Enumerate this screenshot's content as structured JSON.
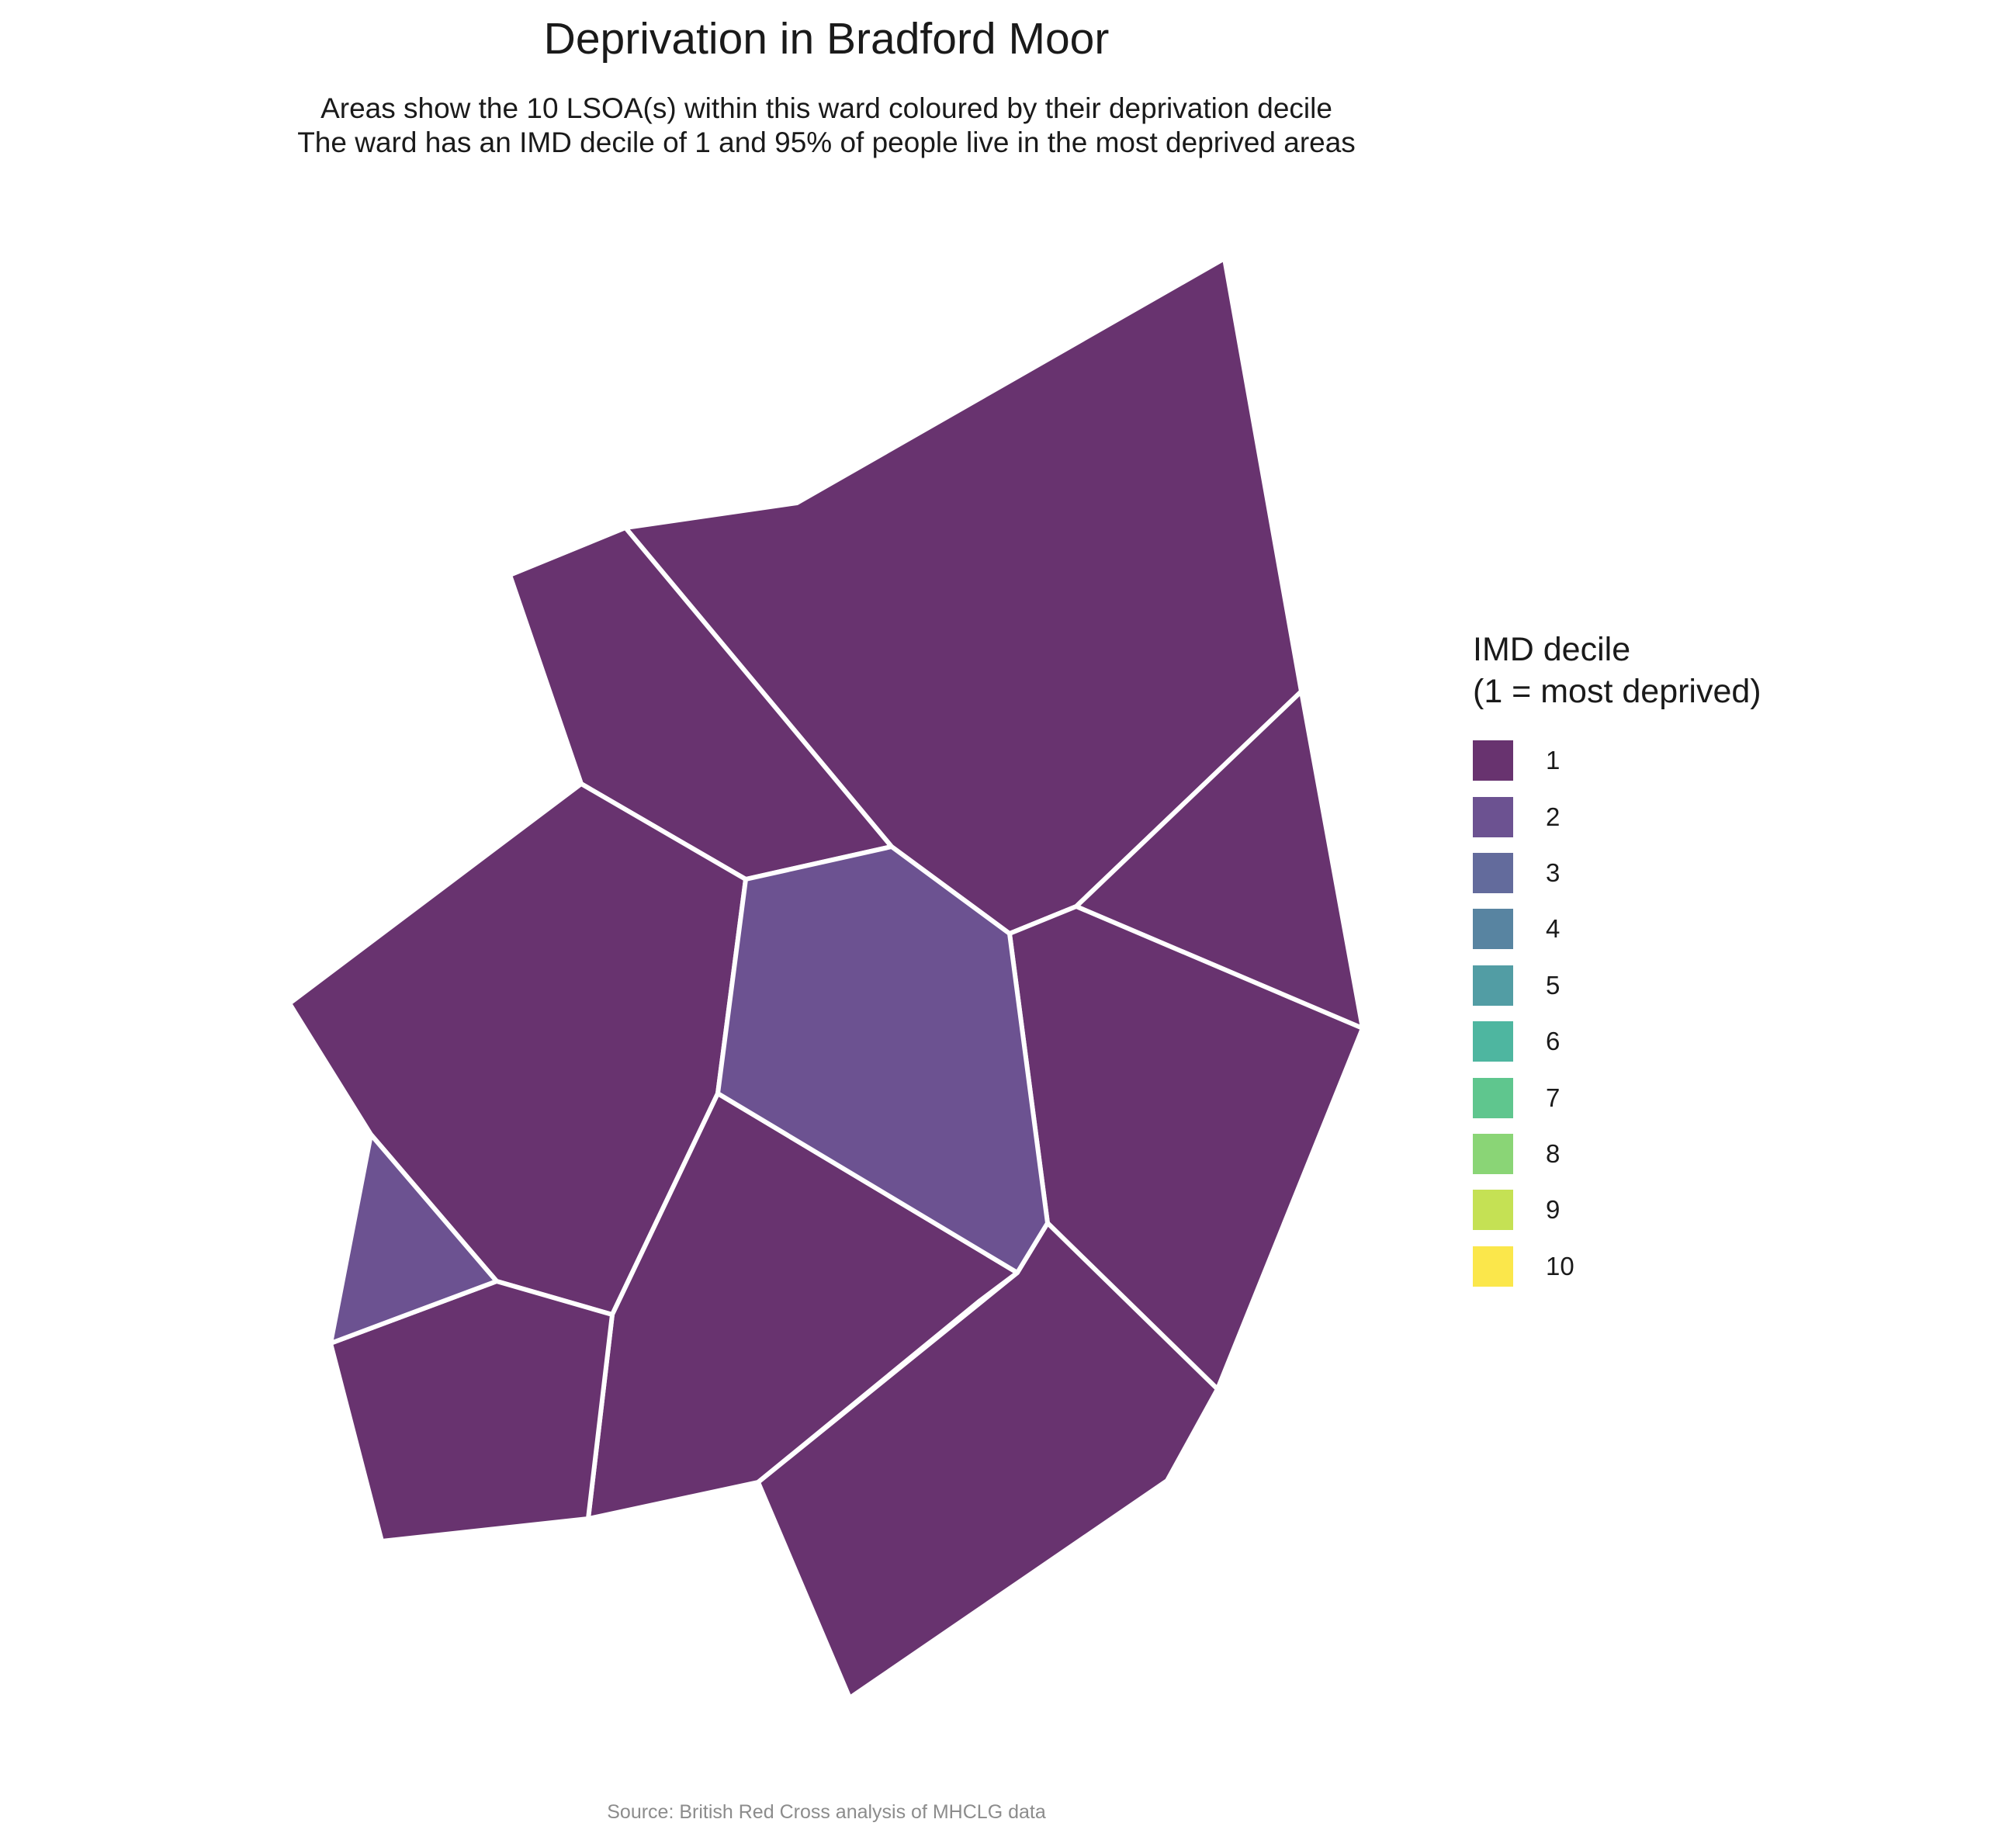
{
  "title": "Deprivation in Bradford Moor",
  "subtitle_lines": [
    "Areas show the 10 LSOA(s) within this ward coloured by their deprivation decile",
    "The ward has an IMD decile of 1 and 95% of people live in the most deprived areas"
  ],
  "legend": {
    "title_lines": [
      "IMD decile",
      "(1 = most deprived)"
    ],
    "items": [
      {
        "label": "1",
        "color": "#68336f"
      },
      {
        "label": "2",
        "color": "#6c5291"
      },
      {
        "label": "3",
        "color": "#636b9c"
      },
      {
        "label": "4",
        "color": "#5884a1"
      },
      {
        "label": "5",
        "color": "#529da4"
      },
      {
        "label": "6",
        "color": "#4eb6a0"
      },
      {
        "label": "7",
        "color": "#5fc68e"
      },
      {
        "label": "8",
        "color": "#8ad576"
      },
      {
        "label": "9",
        "color": "#c5e154"
      },
      {
        "label": "10",
        "color": "#fbe74b"
      }
    ]
  },
  "lsoas": [
    {
      "decile": 1
    },
    {
      "decile": 1
    },
    {
      "decile": 1
    },
    {
      "decile": 1
    },
    {
      "decile": 1
    },
    {
      "decile": 1
    },
    {
      "decile": 1
    },
    {
      "decile": 1
    },
    {
      "decile": 2
    },
    {
      "decile": 2
    }
  ],
  "caption": "Source: British Red Cross analysis of MHCLG data"
}
